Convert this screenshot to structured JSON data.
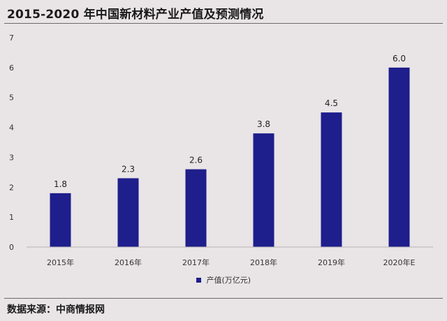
{
  "title": "2015-2020 年中国新材料产业产值及预测情况",
  "source": "数据来源：中商情报网",
  "chart_data": {
    "type": "bar",
    "categories": [
      "2015年",
      "2016年",
      "2017年",
      "2018年",
      "2019年",
      "2020年E"
    ],
    "series": [
      {
        "name": "产值(万亿元)",
        "values": [
          1.8,
          2.3,
          2.6,
          3.8,
          4.5,
          6.0
        ],
        "value_labels": [
          "1.8",
          "2.3",
          "2.6",
          "3.8",
          "4.5",
          "6.0"
        ]
      }
    ],
    "y_ticks": [
      "0",
      "1",
      "2",
      "3",
      "4",
      "5",
      "6",
      "7"
    ],
    "ylim": [
      0,
      7
    ],
    "grid": false,
    "legend_position": "bottom-center",
    "bar_color": "#1e1e8c"
  }
}
